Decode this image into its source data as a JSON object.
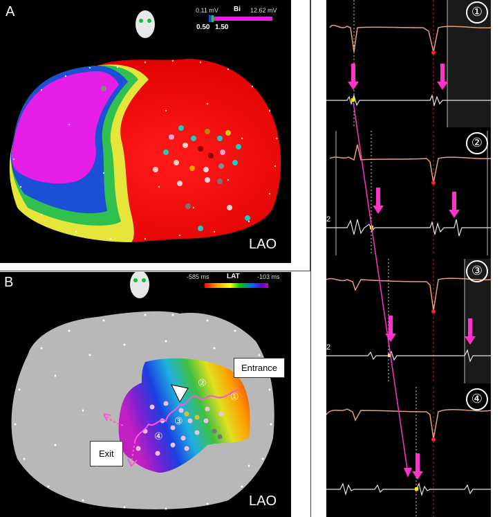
{
  "panel_a": {
    "label": "A",
    "view": "LAO",
    "scale": {
      "min_voltage": "0.11 mV",
      "mode": "Bi",
      "max_voltage": "12.62 mV",
      "low_threshold": "0.50",
      "high_threshold": "1.50"
    }
  },
  "panel_b": {
    "label": "B",
    "view": "LAT",
    "view_label": "LAO",
    "scale": {
      "min_time": "-585 ms",
      "mode": "LAT",
      "max_time": "-103 ms"
    },
    "callouts": {
      "entrance": "Entrance",
      "exit": "Exit"
    },
    "markers": [
      "①",
      "②",
      "③",
      "④"
    ]
  },
  "strips": [
    {
      "number": "①"
    },
    {
      "number": "②",
      "side_text": "2"
    },
    {
      "number": "③",
      "side_text": "2"
    },
    {
      "number": "④"
    }
  ],
  "colors": {
    "accent": "#ff33cc",
    "ecg": "#e8a07a",
    "egm": "#e6e6e6"
  }
}
